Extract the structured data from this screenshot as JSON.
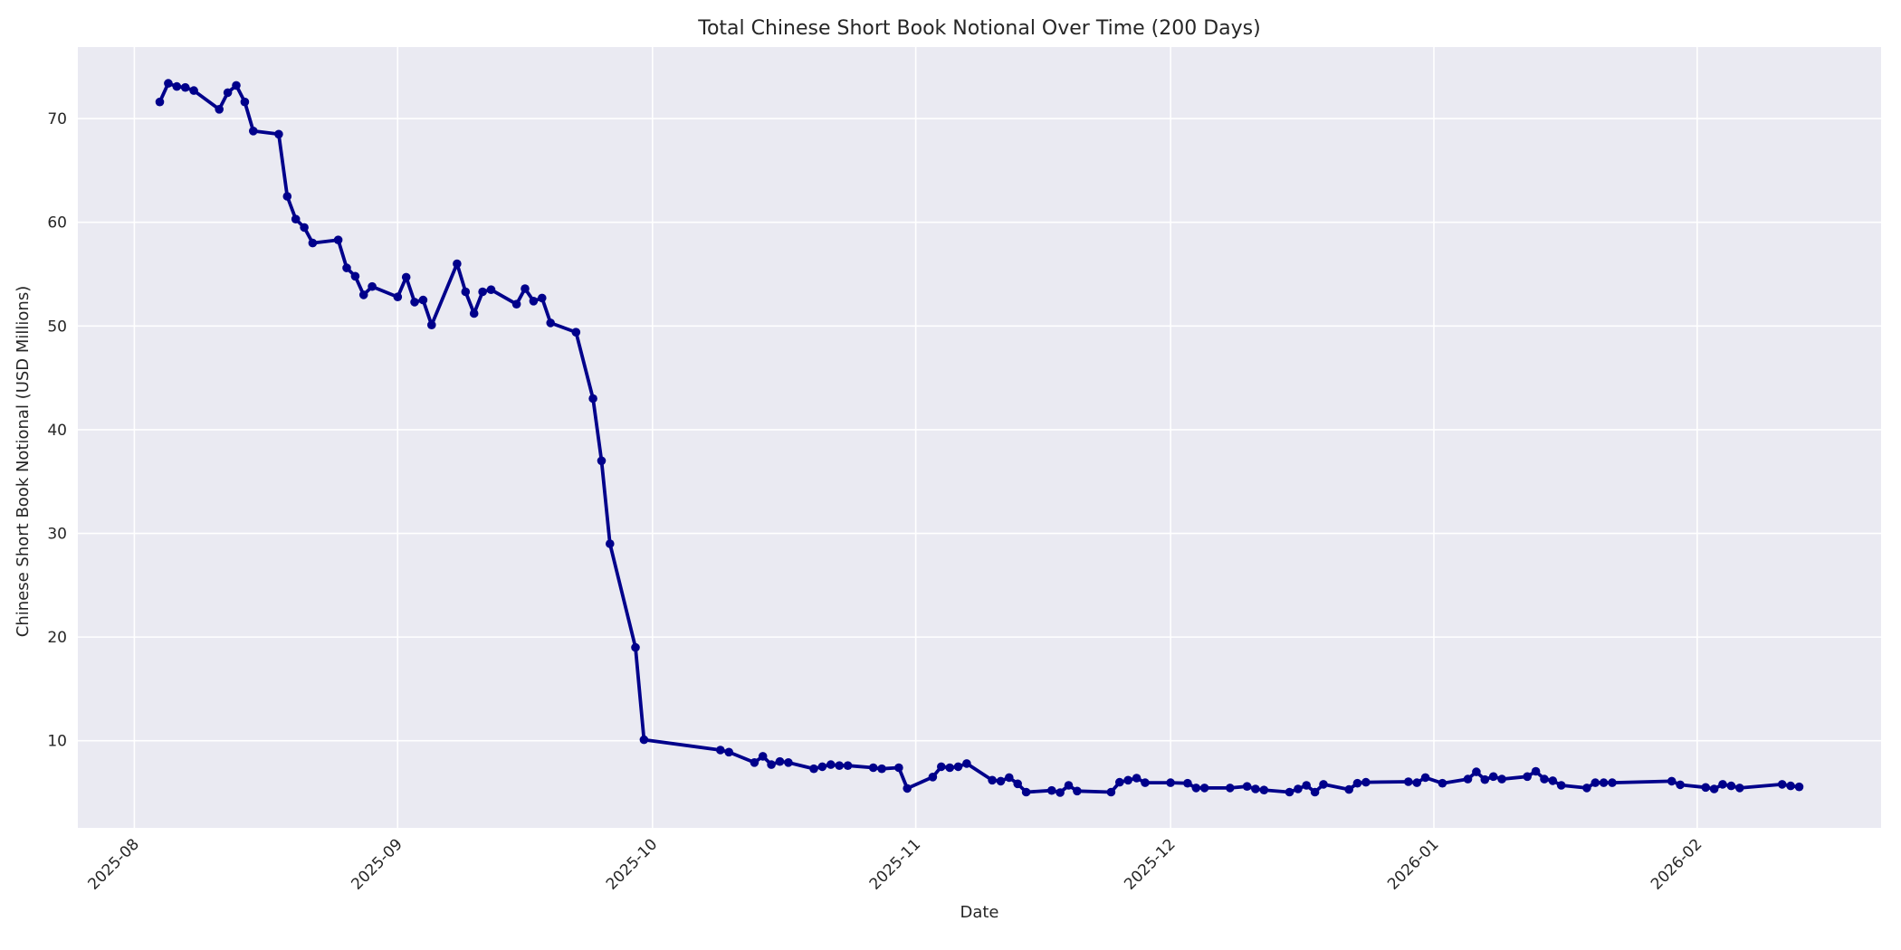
{
  "chart_data": {
    "type": "line",
    "title": "Total Chinese Short Book Notional Over Time (200 Days)",
    "xlabel": "Date",
    "ylabel": "Chinese Short Book Notional (USD Millions)",
    "legend": "none",
    "grid": true,
    "plot_bg_color": "#EAEAF2",
    "grid_color": "#FFFFFF",
    "line_color": "#00008B",
    "marker": "circle",
    "text_color": "#262626",
    "ylim": [
      1.6,
      76.9
    ],
    "y_ticks": [
      10,
      20,
      30,
      40,
      50,
      60,
      70
    ],
    "x_ticks": [
      {
        "label": "2025-08",
        "date": "2025-08-01"
      },
      {
        "label": "2025-09",
        "date": "2025-09-01"
      },
      {
        "label": "2025-10",
        "date": "2025-10-01"
      },
      {
        "label": "2025-11",
        "date": "2025-11-01"
      },
      {
        "label": "2025-12",
        "date": "2025-12-01"
      },
      {
        "label": "2026-01",
        "date": "2026-01-01"
      },
      {
        "label": "2026-02",
        "date": "2026-02-01"
      }
    ],
    "series": [
      {
        "name": "Total Chinese Short Book Notional",
        "points": [
          [
            "2025-08-04",
            71.6
          ],
          [
            "2025-08-05",
            73.4
          ],
          [
            "2025-08-06",
            73.1
          ],
          [
            "2025-08-07",
            73.0
          ],
          [
            "2025-08-08",
            72.7
          ],
          [
            "2025-08-11",
            70.9
          ],
          [
            "2025-08-12",
            72.5
          ],
          [
            "2025-08-13",
            73.2
          ],
          [
            "2025-08-14",
            71.6
          ],
          [
            "2025-08-15",
            68.8
          ],
          [
            "2025-08-18",
            68.5
          ],
          [
            "2025-08-19",
            62.5
          ],
          [
            "2025-08-20",
            60.3
          ],
          [
            "2025-08-21",
            59.5
          ],
          [
            "2025-08-22",
            58.0
          ],
          [
            "2025-08-25",
            58.3
          ],
          [
            "2025-08-26",
            55.6
          ],
          [
            "2025-08-27",
            54.8
          ],
          [
            "2025-08-28",
            53.0
          ],
          [
            "2025-08-29",
            53.8
          ],
          [
            "2025-09-01",
            52.8
          ],
          [
            "2025-09-02",
            54.7
          ],
          [
            "2025-09-03",
            52.3
          ],
          [
            "2025-09-04",
            52.5
          ],
          [
            "2025-09-05",
            50.1
          ],
          [
            "2025-09-08",
            56.0
          ],
          [
            "2025-09-09",
            53.3
          ],
          [
            "2025-09-10",
            51.2
          ],
          [
            "2025-09-11",
            53.3
          ],
          [
            "2025-09-12",
            53.5
          ],
          [
            "2025-09-15",
            52.1
          ],
          [
            "2025-09-16",
            53.6
          ],
          [
            "2025-09-17",
            52.4
          ],
          [
            "2025-09-18",
            52.7
          ],
          [
            "2025-09-19",
            50.3
          ],
          [
            "2025-09-22",
            49.4
          ],
          [
            "2025-09-24",
            43.0
          ],
          [
            "2025-09-25",
            37.0
          ],
          [
            "2025-09-26",
            29.0
          ],
          [
            "2025-09-29",
            19.0
          ],
          [
            "2025-09-30",
            10.1
          ],
          [
            "2025-10-09",
            9.1
          ],
          [
            "2025-10-10",
            8.9
          ],
          [
            "2025-10-13",
            7.9
          ],
          [
            "2025-10-14",
            8.5
          ],
          [
            "2025-10-15",
            7.7
          ],
          [
            "2025-10-16",
            8.0
          ],
          [
            "2025-10-17",
            7.9
          ],
          [
            "2025-10-20",
            7.3
          ],
          [
            "2025-10-21",
            7.5
          ],
          [
            "2025-10-22",
            7.7
          ],
          [
            "2025-10-23",
            7.6
          ],
          [
            "2025-10-24",
            7.6
          ],
          [
            "2025-10-27",
            7.4
          ],
          [
            "2025-10-28",
            7.3
          ],
          [
            "2025-10-30",
            7.4
          ],
          [
            "2025-10-31",
            5.4
          ],
          [
            "2025-11-03",
            6.5
          ],
          [
            "2025-11-04",
            7.5
          ],
          [
            "2025-11-05",
            7.4
          ],
          [
            "2025-11-06",
            7.5
          ],
          [
            "2025-11-07",
            7.8
          ],
          [
            "2025-11-10",
            6.2
          ],
          [
            "2025-11-11",
            6.1
          ],
          [
            "2025-11-12",
            6.45
          ],
          [
            "2025-11-13",
            5.85
          ],
          [
            "2025-11-14",
            5.05
          ],
          [
            "2025-11-17",
            5.2
          ],
          [
            "2025-11-18",
            5.0
          ],
          [
            "2025-11-19",
            5.7
          ],
          [
            "2025-11-20",
            5.15
          ],
          [
            "2025-11-24",
            5.05
          ],
          [
            "2025-11-25",
            6.0
          ],
          [
            "2025-11-26",
            6.2
          ],
          [
            "2025-11-27",
            6.4
          ],
          [
            "2025-11-28",
            5.95
          ],
          [
            "2025-12-01",
            5.95
          ],
          [
            "2025-12-03",
            5.9
          ],
          [
            "2025-12-04",
            5.45
          ],
          [
            "2025-12-05",
            5.45
          ],
          [
            "2025-12-08",
            5.45
          ],
          [
            "2025-12-10",
            5.6
          ],
          [
            "2025-12-11",
            5.35
          ],
          [
            "2025-12-12",
            5.25
          ],
          [
            "2025-12-15",
            5.05
          ],
          [
            "2025-12-16",
            5.35
          ],
          [
            "2025-12-17",
            5.7
          ],
          [
            "2025-12-18",
            5.05
          ],
          [
            "2025-12-19",
            5.8
          ],
          [
            "2025-12-22",
            5.3
          ],
          [
            "2025-12-23",
            5.9
          ],
          [
            "2025-12-24",
            6.0
          ],
          [
            "2025-12-29",
            6.05
          ],
          [
            "2025-12-30",
            5.95
          ],
          [
            "2025-12-31",
            6.45
          ],
          [
            "2026-01-02",
            5.9
          ],
          [
            "2026-01-05",
            6.3
          ],
          [
            "2026-01-06",
            7.0
          ],
          [
            "2026-01-07",
            6.25
          ],
          [
            "2026-01-08",
            6.55
          ],
          [
            "2026-01-09",
            6.3
          ],
          [
            "2026-01-12",
            6.55
          ],
          [
            "2026-01-13",
            7.05
          ],
          [
            "2026-01-14",
            6.3
          ],
          [
            "2026-01-15",
            6.15
          ],
          [
            "2026-01-16",
            5.7
          ],
          [
            "2026-01-19",
            5.45
          ],
          [
            "2026-01-20",
            5.95
          ],
          [
            "2026-01-21",
            5.95
          ],
          [
            "2026-01-22",
            5.95
          ],
          [
            "2026-01-29",
            6.1
          ],
          [
            "2026-01-30",
            5.75
          ],
          [
            "2026-02-02",
            5.5
          ],
          [
            "2026-02-03",
            5.35
          ],
          [
            "2026-02-04",
            5.8
          ],
          [
            "2026-02-05",
            5.65
          ],
          [
            "2026-02-06",
            5.45
          ],
          [
            "2026-02-11",
            5.8
          ],
          [
            "2026-02-12",
            5.65
          ],
          [
            "2026-02-13",
            5.55
          ]
        ]
      }
    ]
  }
}
